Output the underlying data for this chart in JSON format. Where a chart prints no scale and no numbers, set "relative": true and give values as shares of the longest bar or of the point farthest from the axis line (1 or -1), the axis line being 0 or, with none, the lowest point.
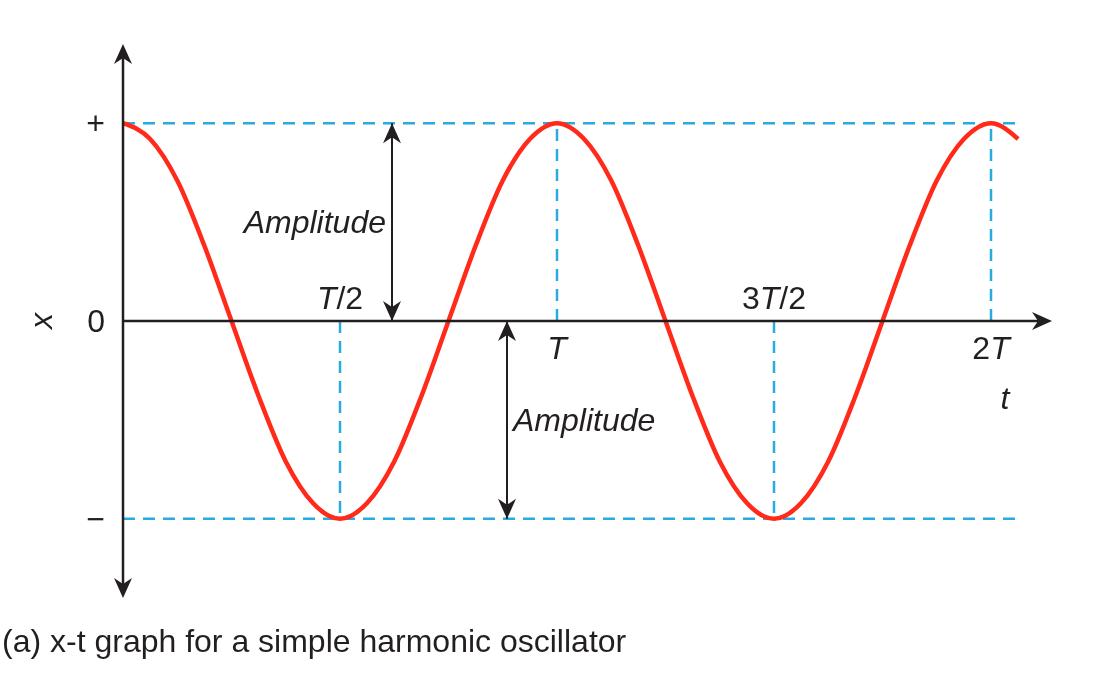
{
  "chart_data": {
    "type": "line",
    "xlabel": "t",
    "ylabel": "x",
    "relative": true,
    "categories": [
      null,
      null,
      null,
      null,
      null,
      null,
      null,
      null,
      "T/2",
      null,
      null,
      null,
      null,
      null,
      null,
      null,
      "T",
      null,
      null,
      null,
      null,
      null,
      null,
      null,
      "3T/2",
      null,
      null,
      null,
      null,
      null,
      null,
      null,
      "2T",
      null
    ],
    "series": [
      {
        "color": "#ff2a1a",
        "values": [
          1,
          0.92,
          0.71,
          0.38,
          0,
          -0.38,
          -0.71,
          -0.92,
          -1,
          -0.92,
          -0.71,
          -0.38,
          0,
          0.38,
          0.71,
          0.92,
          1,
          0.92,
          0.71,
          0.38,
          0,
          -0.38,
          -0.71,
          -0.92,
          -1,
          -0.92,
          -0.71,
          -0.38,
          0,
          0.38,
          0.71,
          0.92,
          1,
          0.92
        ]
      }
    ],
    "grid": false,
    "marker": "none",
    "line_style": "solid",
    "ref_lines": [
      {
        "axis": "y",
        "value": 1,
        "color": "#29abe2",
        "line_style": "dashed"
      },
      {
        "axis": "y",
        "value": -1,
        "color": "#29abe2",
        "line_style": "dashed"
      },
      {
        "axis": "x",
        "value": "T/2",
        "color": "#29abe2",
        "line_style": "dashed"
      },
      {
        "axis": "x",
        "value": "T",
        "color": "#29abe2",
        "line_style": "dashed"
      },
      {
        "axis": "x",
        "value": "3T/2",
        "color": "#29abe2",
        "line_style": "dashed"
      },
      {
        "axis": "x",
        "value": "2T",
        "color": "#29abe2",
        "line_style": "dashed"
      }
    ],
    "annotations": [
      "Amplitude",
      "Amplitude",
      "(a) x-t graph for a simple harmonic oscillator",
      "+",
      "0",
      "−"
    ]
  }
}
